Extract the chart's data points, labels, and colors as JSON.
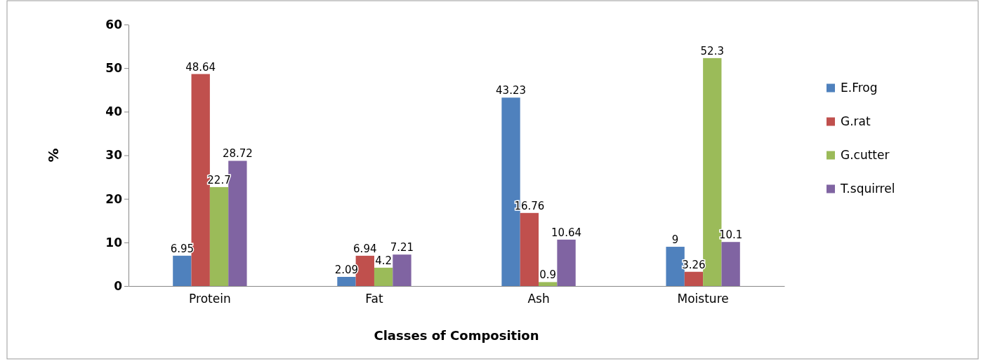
{
  "chart_data": {
    "type": "bar",
    "xlabel": "Classes of Composition",
    "ylabel": "%",
    "categories": [
      "Protein",
      "Fat",
      "Ash",
      "Moisture"
    ],
    "series": [
      {
        "name": "E.Frog",
        "color": "#4f81bd",
        "values": [
          6.95,
          2.09,
          43.23,
          9
        ]
      },
      {
        "name": "G.rat",
        "color": "#c0504d",
        "values": [
          48.64,
          6.94,
          16.76,
          3.26
        ]
      },
      {
        "name": "G.cutter",
        "color": "#9bbb59",
        "values": [
          22.7,
          4.2,
          0.9,
          52.3
        ]
      },
      {
        "name": "T.squirrel",
        "color": "#8064a2",
        "values": [
          28.72,
          7.21,
          10.64,
          10.1
        ]
      }
    ],
    "ylim": [
      0,
      60
    ],
    "yticks": [
      0,
      10,
      20,
      30,
      40,
      50,
      60
    ],
    "data_labels": true,
    "legend": "right",
    "grid": false
  }
}
